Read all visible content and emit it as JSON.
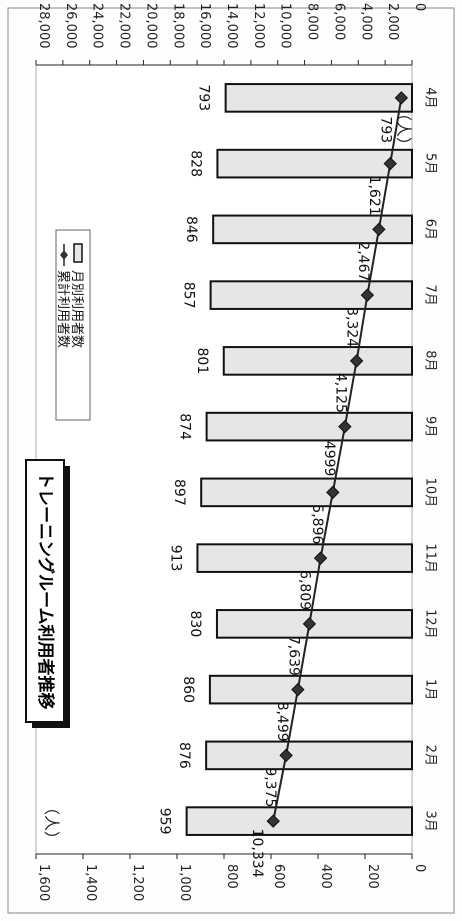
{
  "chart_data": {
    "type": "bar",
    "title": "トレーニングルーム利用者推移",
    "categories": [
      "4月",
      "5月",
      "6月",
      "7月",
      "8月",
      "9月",
      "10月",
      "11月",
      "12月",
      "1月",
      "2月",
      "3月"
    ],
    "series": [
      {
        "name": "月別利用者数",
        "type": "bar",
        "axis": "primary",
        "values": [
          793,
          828,
          846,
          857,
          801,
          874,
          897,
          913,
          830,
          860,
          876,
          959
        ]
      },
      {
        "name": "累計利用者数",
        "type": "line",
        "axis": "secondary",
        "values": [
          793,
          1621,
          2467,
          3324,
          4125,
          4999,
          5896,
          6809,
          7639,
          8499,
          9375,
          10334
        ]
      }
    ],
    "value_labels": {
      "bars": [
        "793",
        "828",
        "846",
        "857",
        "801",
        "874",
        "897",
        "913",
        "830",
        "860",
        "876",
        "959"
      ],
      "line": [
        "793",
        "1,621",
        "2,467",
        "3,324",
        "4,125",
        "4999",
        "5,896",
        "6,809",
        "7,639",
        "8,499",
        "9,375",
        "10,334"
      ]
    },
    "primary_axis": {
      "unit": "（人）",
      "range": [
        0,
        1600
      ],
      "ticks": [
        0,
        200,
        400,
        600,
        800,
        1000,
        1200,
        1400,
        1600
      ],
      "tick_labels": [
        "0",
        "200",
        "400",
        "600",
        "800",
        "1,000",
        "1,200",
        "1,400",
        "1,600"
      ]
    },
    "secondary_axis": {
      "unit": "（人）",
      "range": [
        0,
        28000
      ],
      "ticks": [
        0,
        2000,
        4000,
        6000,
        8000,
        10000,
        12000,
        14000,
        16000,
        18000,
        20000,
        22000,
        24000,
        26000,
        28000
      ],
      "tick_labels": [
        "0",
        "2,000",
        "4,000",
        "6,000",
        "8,000",
        "10,000",
        "12,000",
        "14,000",
        "16,000",
        "18,000",
        "20,000",
        "22,000",
        "24,000",
        "26,000",
        "28,000"
      ]
    },
    "legend": {
      "entries": [
        "月別利用者数",
        "累計利用者数"
      ],
      "placement": "top-left (rotated)"
    },
    "orientation": "rotated 90° clockwise on the page",
    "colors": {
      "bar_fill": "#e6e6e6",
      "bar_stroke": "#111111",
      "line": "#222222",
      "marker": "#333333"
    }
  }
}
